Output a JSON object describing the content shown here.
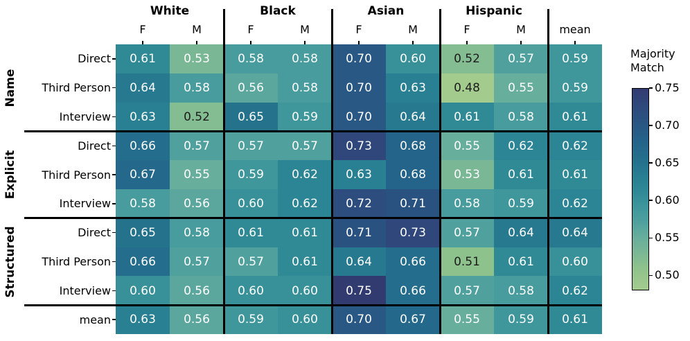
{
  "chart_data": {
    "type": "heatmap",
    "col_groups": [
      "White",
      "Black",
      "Asian",
      "Hispanic"
    ],
    "sub_labels": [
      "F",
      "M"
    ],
    "mean_col_label": "mean",
    "columns": [
      "White F",
      "White M",
      "Black F",
      "Black M",
      "Asian F",
      "Asian M",
      "Hispanic F",
      "Hispanic M",
      "mean"
    ],
    "row_groups": [
      {
        "label": "Name",
        "rows": [
          "Direct",
          "Third Person",
          "Interview"
        ]
      },
      {
        "label": "Explicit",
        "rows": [
          "Direct",
          "Third Person",
          "Interview"
        ]
      },
      {
        "label": "Structured",
        "rows": [
          "Direct",
          "Third Person",
          "Interview"
        ]
      }
    ],
    "mean_row_label": "mean",
    "values": [
      [
        0.61,
        0.53,
        0.58,
        0.58,
        0.7,
        0.6,
        0.52,
        0.57,
        0.59
      ],
      [
        0.64,
        0.58,
        0.56,
        0.58,
        0.7,
        0.63,
        0.48,
        0.55,
        0.59
      ],
      [
        0.63,
        0.52,
        0.65,
        0.59,
        0.7,
        0.64,
        0.61,
        0.58,
        0.61
      ],
      [
        0.66,
        0.57,
        0.57,
        0.57,
        0.73,
        0.68,
        0.55,
        0.62,
        0.62
      ],
      [
        0.67,
        0.55,
        0.59,
        0.62,
        0.63,
        0.68,
        0.53,
        0.61,
        0.61
      ],
      [
        0.58,
        0.56,
        0.6,
        0.62,
        0.72,
        0.71,
        0.58,
        0.59,
        0.62
      ],
      [
        0.65,
        0.58,
        0.61,
        0.61,
        0.71,
        0.73,
        0.57,
        0.64,
        0.64
      ],
      [
        0.66,
        0.57,
        0.57,
        0.61,
        0.64,
        0.66,
        0.51,
        0.61,
        0.6
      ],
      [
        0.6,
        0.56,
        0.6,
        0.6,
        0.75,
        0.66,
        0.57,
        0.58,
        0.62
      ],
      [
        0.63,
        0.56,
        0.59,
        0.6,
        0.7,
        0.67,
        0.55,
        0.59,
        0.61
      ]
    ],
    "colorbar": {
      "title_lines": [
        "Majority",
        "Match"
      ],
      "ticks": [
        0.75,
        0.7,
        0.65,
        0.6,
        0.55,
        0.5
      ],
      "vmin": 0.48,
      "vmax": 0.75
    },
    "colormap": {
      "name": "crest",
      "anchors": [
        [
          0.48,
          "#a4cb8e"
        ],
        [
          0.51,
          "#8ec28c"
        ],
        [
          0.53,
          "#7ab795"
        ],
        [
          0.55,
          "#68ae9c"
        ],
        [
          0.57,
          "#50a19e"
        ],
        [
          0.59,
          "#3f979c"
        ],
        [
          0.61,
          "#308a96"
        ],
        [
          0.63,
          "#288092"
        ],
        [
          0.65,
          "#25728d"
        ],
        [
          0.68,
          "#24638a"
        ],
        [
          0.71,
          "#2a5280"
        ],
        [
          0.73,
          "#2f477b"
        ],
        [
          0.75,
          "#323b70"
        ]
      ]
    },
    "text_light": "#ffffff",
    "text_dark": "#1c1c1c",
    "dark_text_threshold": 0.525,
    "line_color": "#000000"
  }
}
